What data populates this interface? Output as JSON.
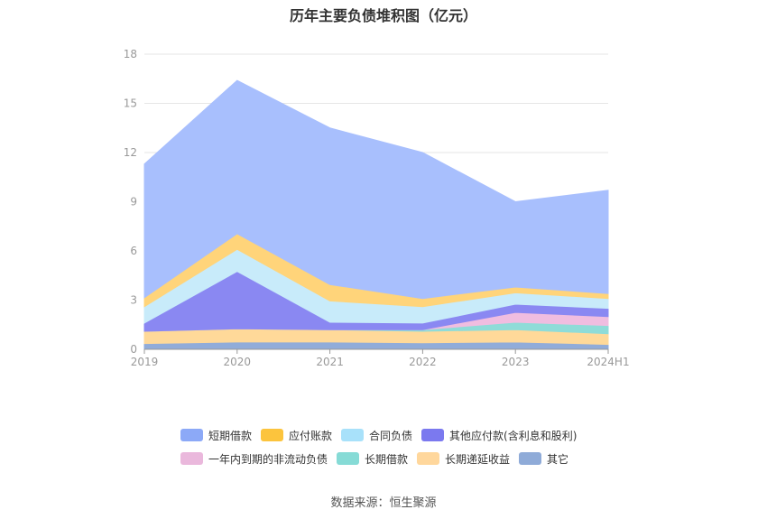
{
  "chart_data": {
    "type": "area",
    "stacked": true,
    "title": "历年主要负债堆积图（亿元）",
    "categories": [
      "2019",
      "2020",
      "2021",
      "2022",
      "2023",
      "2024H1"
    ],
    "y_ticks": [
      "0",
      "3",
      "6",
      "9",
      "12",
      "15",
      "18"
    ],
    "ylim": [
      0,
      18
    ],
    "grid": true,
    "legend_position": "bottom",
    "series": [
      {
        "name": "其它",
        "color": "#91acd9",
        "values": [
          0.35,
          0.45,
          0.45,
          0.4,
          0.45,
          0.3
        ]
      },
      {
        "name": "长期递延收益",
        "color": "#ffd999",
        "values": [
          0.75,
          0.8,
          0.75,
          0.7,
          0.75,
          0.65
        ]
      },
      {
        "name": "长期借款",
        "color": "#8fdcd8",
        "values": [
          0.0,
          0.0,
          0.0,
          0.1,
          0.45,
          0.5
        ]
      },
      {
        "name": "一年内到期的非流动负债",
        "color": "#f0bde0",
        "values": [
          0.0,
          0.0,
          0.0,
          0.0,
          0.6,
          0.55
        ]
      },
      {
        "name": "其他应付款(含利息和股利)",
        "color": "#8a88f2",
        "values": [
          0.5,
          3.5,
          0.45,
          0.4,
          0.5,
          0.5
        ]
      },
      {
        "name": "合同负债",
        "color": "#c8ebfa",
        "values": [
          1.0,
          1.35,
          1.3,
          1.0,
          0.7,
          0.6
        ]
      },
      {
        "name": "应付账款",
        "color": "#ffd47a",
        "values": [
          0.55,
          0.95,
          1.0,
          0.5,
          0.35,
          0.3
        ]
      },
      {
        "name": "短期借款",
        "color": "#a8bffd",
        "values": [
          8.15,
          9.35,
          9.55,
          8.9,
          5.2,
          6.3
        ]
      }
    ],
    "legend": [
      [
        {
          "name": "短期借款",
          "color": "#8ca9f7"
        },
        {
          "name": "应付账款",
          "color": "#fcc43d"
        },
        {
          "name": "合同负债",
          "color": "#a8e1fa"
        },
        {
          "name": "其他应付款(含利息和股利)",
          "color": "#7b79ef"
        }
      ],
      [
        {
          "name": "一年内到期的非流动负债",
          "color": "#eab8dc"
        },
        {
          "name": "长期借款",
          "color": "#86dbd6"
        },
        {
          "name": "长期递延收益",
          "color": "#ffd79c"
        },
        {
          "name": "其它",
          "color": "#8fabd8"
        }
      ]
    ]
  },
  "footer": {
    "source": "数据来源：恒生聚源"
  }
}
